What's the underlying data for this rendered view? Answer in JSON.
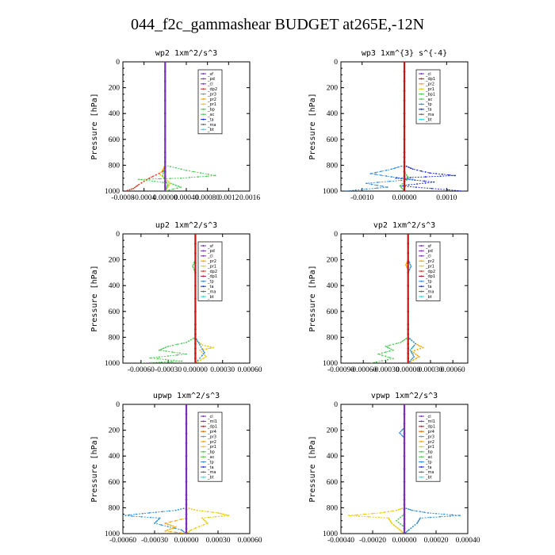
{
  "figure_title": "044_f2c_gammashear  BUDGET at265E,-12N",
  "colors": {
    "cl": "#7a2fb8",
    "sf": "#7a2fb8",
    "pd": "#7a2fb8",
    "ml": "#7a2fb8",
    "dp1": "#b0182c",
    "dp2": "#d13a2a",
    "pr1": "#e8c800",
    "pr2": "#f5a300",
    "pr4": "#e06a00",
    "bp1": "#48c850",
    "bp": "#48c850",
    "ac": "#48c850",
    "tp": "#2a8ad8",
    "ta": "#1a2ad8",
    "ma": "#606060",
    "bt": "#20e0e0",
    "res": "#c81414"
  },
  "chart_data": [
    {
      "type": "line",
      "title": "wp2  1xm^2/s^3",
      "ylabel": "Pressure [hPa]",
      "xlim": [
        -0.0008,
        0.0016
      ],
      "ylim": [
        1000,
        0
      ],
      "xticks": [
        "-0.0008",
        "-0.0004",
        "0.00000",
        "0.00040",
        "0.00080",
        "0.0012",
        "0.0016"
      ],
      "yticks": [
        "0",
        "200",
        "400",
        "600",
        "800",
        "1000"
      ],
      "legend": [
        "_sf",
        "_pd",
        "_cl",
        "_dp2",
        "_pr3",
        "_pr2",
        "_pr1",
        "_bp",
        "_ac",
        "_ta",
        "_ma",
        "_bt"
      ],
      "series": [
        {
          "name": "_dp2",
          "color": "dp2",
          "x": [
            0,
            0,
            -5e-05,
            -0.0003,
            -0.0005,
            -0.0006,
            -0.00075
          ],
          "y": [
            0,
            800,
            850,
            900,
            950,
            980,
            1000
          ]
        },
        {
          "name": "_bp",
          "color": "bp",
          "x": [
            0,
            0,
            0.0004,
            0.00095,
            0.0003,
            -0.0005,
            0.0001,
            0.0003,
            0
          ],
          "y": [
            0,
            800,
            840,
            880,
            900,
            910,
            940,
            970,
            1000
          ]
        },
        {
          "name": "_pr3",
          "color": "pr1",
          "x": [
            0,
            0,
            -0.0001,
            0.0001,
            0
          ],
          "y": [
            0,
            800,
            870,
            940,
            1000
          ]
        },
        {
          "name": "_ac",
          "color": "ac",
          "x": [
            0,
            0,
            -5e-05,
            5e-05,
            0
          ],
          "y": [
            0,
            820,
            880,
            950,
            1000
          ]
        },
        {
          "name": "_cl",
          "color": "cl",
          "x": [
            0,
            0,
            0,
            0
          ],
          "y": [
            0,
            300,
            700,
            1000
          ]
        }
      ]
    },
    {
      "type": "line",
      "title": "wp3  1xm^{3} s^{-4}",
      "ylabel": "Pressure [hPa]",
      "xlim": [
        -0.0015,
        0.0015
      ],
      "ylim": [
        1000,
        0
      ],
      "xticks": [
        "-0.0010",
        "0.00000",
        "0.0010"
      ],
      "yticks": [
        "0",
        "200",
        "400",
        "600",
        "800",
        "1000"
      ],
      "legend": [
        "_cl",
        "_dp1",
        "_pr2",
        "_pr1",
        "_bp1",
        "_ac",
        "_tp",
        "_ta",
        "_ma",
        "_bt"
      ],
      "series": [
        {
          "name": "_ta",
          "color": "ta",
          "x": [
            0,
            0,
            0.0002,
            0.0006,
            0.0012,
            -0.0002,
            0.0007,
            -0.0001,
            0.0014
          ],
          "y": [
            0,
            800,
            830,
            860,
            880,
            900,
            930,
            960,
            1000
          ]
        },
        {
          "name": "_tp",
          "color": "tp",
          "x": [
            0,
            0,
            -0.0003,
            -0.0008,
            -0.0003,
            0.0002,
            -0.0009,
            -0.0004,
            -0.0014
          ],
          "y": [
            0,
            800,
            830,
            865,
            890,
            910,
            940,
            970,
            1000
          ]
        },
        {
          "name": "_bp1",
          "color": "bp1",
          "x": [
            0,
            0,
            0.0001,
            -0.0001,
            0
          ],
          "y": [
            0,
            850,
            900,
            960,
            1000
          ]
        },
        {
          "name": "_dp1",
          "color": "res",
          "x": [
            0,
            0,
            0,
            0
          ],
          "y": [
            0,
            300,
            700,
            1000
          ]
        }
      ]
    },
    {
      "type": "line",
      "title": "up2  1xm^2/s^3",
      "ylabel": "Pressure [hPa]",
      "xlim": [
        -0.0008,
        0.0006
      ],
      "ylim": [
        1000,
        0
      ],
      "xticks": [
        "-0.00060",
        "-0.00030",
        "0.00000",
        "0.00030",
        "0.00060"
      ],
      "yticks": [
        "0",
        "200",
        "400",
        "600",
        "800",
        "1000"
      ],
      "legend": [
        "_sf",
        "_pd",
        "_cl",
        "_pr2",
        "_pr1",
        "_dp2",
        "_dp1",
        "_tp",
        "_ta",
        "_ma",
        "_bt"
      ],
      "series": [
        {
          "name": "_dp2",
          "color": "bp",
          "x": [
            0,
            0,
            -3e-05,
            0,
            0,
            -0.0001,
            -0.0003,
            -0.0004,
            -0.0001,
            -0.0005,
            -0.00015,
            -0.0006
          ],
          "y": [
            0,
            200,
            250,
            300,
            800,
            840,
            870,
            900,
            930,
            960,
            985,
            1000
          ]
        },
        {
          "name": "_pr1",
          "color": "pr1",
          "x": [
            0,
            0,
            8e-05,
            0.0002,
            5e-05,
            0.00012,
            0
          ],
          "y": [
            0,
            820,
            860,
            880,
            900,
            950,
            1000
          ]
        },
        {
          "name": "_tp",
          "color": "tp",
          "x": [
            0,
            0,
            5e-05,
            0.0001,
            0
          ],
          "y": [
            0,
            800,
            860,
            920,
            1000
          ]
        },
        {
          "name": "_cl",
          "color": "res",
          "x": [
            0,
            0,
            0,
            0
          ],
          "y": [
            0,
            300,
            700,
            1000
          ]
        }
      ]
    },
    {
      "type": "line",
      "title": "vp2  1xm^2/s^3",
      "ylabel": "Pressure [hPa]",
      "xlim": [
        -0.0009,
        0.0008
      ],
      "ylim": [
        1000,
        0
      ],
      "xticks": [
        "-0.00090",
        "-0.00060",
        "-0.00030",
        "0.00000",
        "0.00030",
        "0.00060"
      ],
      "yticks": [
        "0",
        "200",
        "400",
        "600",
        "800",
        "1000"
      ],
      "legend": [
        "_sf",
        "_pd",
        "_cl",
        "_pr2",
        "_pr1",
        "_dp2",
        "_dp1",
        "_tp",
        "_ta",
        "_ma",
        "_bt"
      ],
      "series": [
        {
          "name": "_dp2",
          "color": "bp",
          "x": [
            0,
            0,
            -0.0001,
            -0.0003,
            -0.0002,
            -0.0004,
            -0.0002,
            -0.0005
          ],
          "y": [
            0,
            800,
            840,
            870,
            900,
            930,
            965,
            1000
          ]
        },
        {
          "name": "_pr2",
          "color": "pr2",
          "x": [
            0,
            0,
            -3e-05,
            0,
            0,
            0.0001,
            0.0002,
            5e-05,
            0.00015,
            0
          ],
          "y": [
            0,
            200,
            240,
            280,
            800,
            850,
            880,
            910,
            950,
            1000
          ]
        },
        {
          "name": "_tp",
          "color": "tp",
          "x": [
            0,
            0,
            4e-05,
            0,
            0,
            0.0001,
            3e-05,
            8e-05,
            0
          ],
          "y": [
            0,
            200,
            250,
            300,
            800,
            850,
            900,
            950,
            1000
          ]
        },
        {
          "name": "_cl",
          "color": "res",
          "x": [
            0,
            0,
            0,
            0
          ],
          "y": [
            0,
            300,
            700,
            1000
          ]
        }
      ]
    },
    {
      "type": "line",
      "title": "upwp  1xm^2/s^3",
      "ylabel": "Pressure [hPa]",
      "xlim": [
        -0.0006,
        0.0006
      ],
      "ylim": [
        1000,
        0
      ],
      "xticks": [
        "-0.00060",
        "-0.00030",
        "0.00000",
        "0.00030",
        "0.00060"
      ],
      "yticks": [
        "0",
        "200",
        "400",
        "600",
        "800",
        "1000"
      ],
      "legend": [
        "_cl",
        "_ml1",
        "_dp1",
        "_pr4",
        "_pr3",
        "_pr2",
        "_pr1",
        "_bp",
        "_ac",
        "_tp",
        "_ta",
        "_ma",
        "_bt"
      ],
      "series": [
        {
          "name": "_tp",
          "color": "tp",
          "x": [
            0,
            0,
            -0.0001,
            -0.00035,
            -0.0006,
            -0.00025,
            -0.0003,
            -5e-05,
            0
          ],
          "y": [
            0,
            800,
            820,
            840,
            860,
            880,
            920,
            970,
            1000
          ]
        },
        {
          "name": "_pr2",
          "color": "pr1",
          "x": [
            0,
            0,
            0.0001,
            0.0003,
            0.0004,
            0.00015,
            0.0002,
            5e-05,
            0
          ],
          "y": [
            0,
            800,
            820,
            840,
            860,
            880,
            920,
            970,
            1000
          ]
        },
        {
          "name": "_pr1",
          "color": "pr2",
          "x": [
            0,
            0,
            -0.0002,
            -0.0001,
            -0.0002,
            0
          ],
          "y": [
            0,
            880,
            920,
            950,
            980,
            1000
          ]
        },
        {
          "name": "_cl",
          "color": "cl",
          "x": [
            0,
            0,
            0,
            0
          ],
          "y": [
            0,
            300,
            700,
            1000
          ]
        }
      ]
    },
    {
      "type": "line",
      "title": "vpwp  1xm^2/s^3",
      "ylabel": "Pressure [hPa]",
      "xlim": [
        -0.0004,
        0.0004
      ],
      "ylim": [
        1000,
        0
      ],
      "xticks": [
        "-0.00040",
        "-0.00020",
        "0.00000",
        "0.00020",
        "0.00040"
      ],
      "yticks": [
        "0",
        "200",
        "400",
        "600",
        "800",
        "1000"
      ],
      "legend": [
        "_cl",
        "_ml1",
        "_dp1",
        "_pr4",
        "_pr3",
        "_pr2",
        "_pr1",
        "_bp",
        "_ac",
        "_tp",
        "_ta",
        "_ma",
        "_bt"
      ],
      "series": [
        {
          "name": "_pr2",
          "color": "pr1",
          "x": [
            0,
            0,
            -5e-05,
            -0.00015,
            -0.00035,
            -0.0001,
            -8e-05,
            -3e-05,
            0
          ],
          "y": [
            0,
            800,
            820,
            840,
            860,
            880,
            920,
            970,
            1000
          ]
        },
        {
          "name": "_tp",
          "color": "tp",
          "x": [
            0,
            0,
            -3e-05,
            0,
            0,
            5e-05,
            0.00015,
            0.00035,
            0.0001,
            8e-05,
            3e-05,
            0
          ],
          "y": [
            0,
            180,
            220,
            260,
            800,
            820,
            840,
            860,
            880,
            920,
            970,
            1000
          ]
        },
        {
          "name": "_bp",
          "color": "bp",
          "x": [
            0,
            0,
            -5e-05,
            0,
            0
          ],
          "y": [
            0,
            850,
            900,
            950,
            1000
          ]
        },
        {
          "name": "_cl",
          "color": "cl",
          "x": [
            0,
            0,
            0,
            0
          ],
          "y": [
            0,
            300,
            700,
            1000
          ]
        }
      ]
    }
  ]
}
